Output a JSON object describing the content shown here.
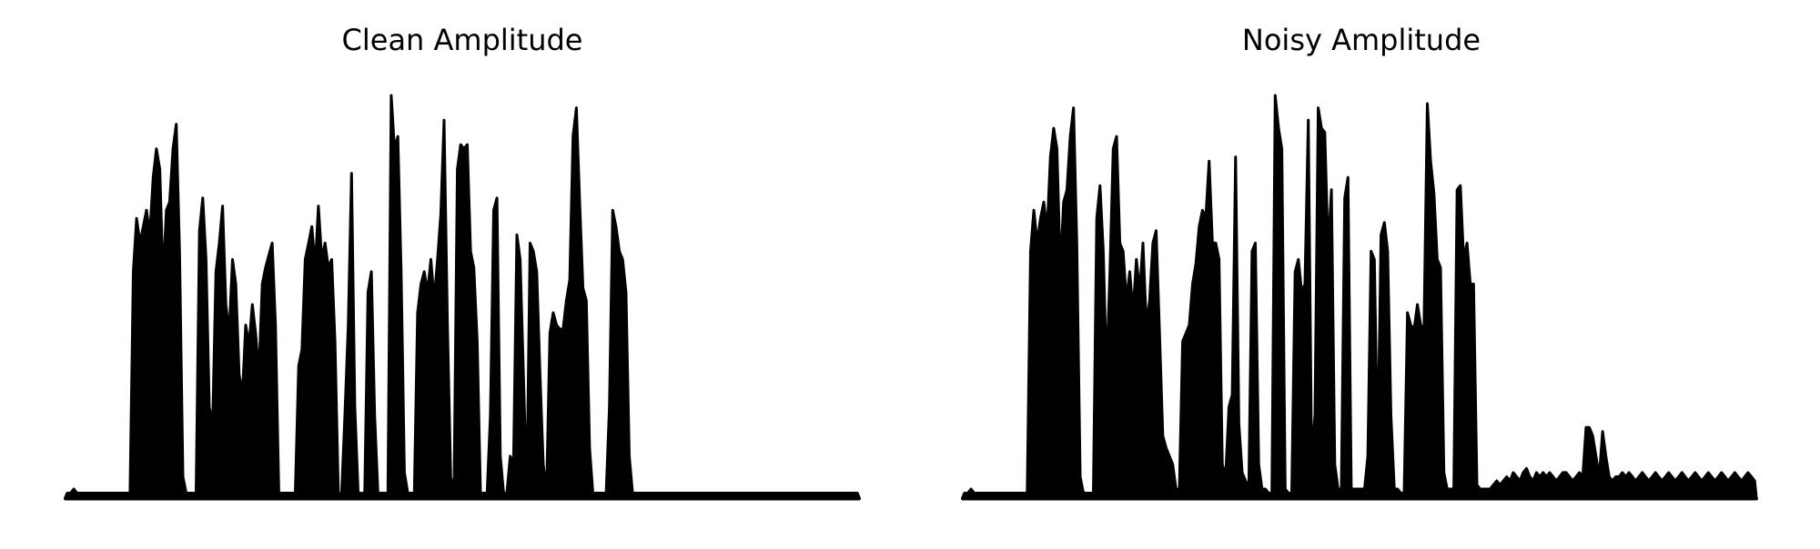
{
  "figure": {
    "ink_color": "#000000",
    "background_color": "#ffffff"
  },
  "chart_data": [
    {
      "type": "area",
      "title": "Clean Amplitude",
      "xlabel": "",
      "ylabel": "",
      "grid": false,
      "axes_visible": false,
      "legend": "none",
      "xlim": [
        0,
        240
      ],
      "ylim": [
        0,
        1
      ],
      "series": [
        {
          "values": [
            0.01,
            0.01,
            0.02,
            0.01,
            0.01,
            0.01,
            0.01,
            0.01,
            0.01,
            0.01,
            0.01,
            0.01,
            0.01,
            0.01,
            0.01,
            0.01,
            0.01,
            0.01,
            0.01,
            0.01,
            0.55,
            0.68,
            0.62,
            0.66,
            0.7,
            0.64,
            0.78,
            0.85,
            0.8,
            0.53,
            0.7,
            0.72,
            0.85,
            0.91,
            0.6,
            0.05,
            0.01,
            0.01,
            0.01,
            0.01,
            0.65,
            0.73,
            0.58,
            0.22,
            0.18,
            0.55,
            0.62,
            0.71,
            0.47,
            0.4,
            0.58,
            0.52,
            0.3,
            0.25,
            0.42,
            0.37,
            0.47,
            0.4,
            0.3,
            0.52,
            0.56,
            0.59,
            0.62,
            0.42,
            0.01,
            0.01,
            0.01,
            0.01,
            0.01,
            0.01,
            0.32,
            0.36,
            0.58,
            0.62,
            0.66,
            0.56,
            0.71,
            0.58,
            0.62,
            0.56,
            0.58,
            0.38,
            0.01,
            0.01,
            0.2,
            0.42,
            0.79,
            0.22,
            0.01,
            0.01,
            0.01,
            0.5,
            0.55,
            0.2,
            0.01,
            0.01,
            0.01,
            0.01,
            0.98,
            0.85,
            0.88,
            0.55,
            0.06,
            0.01,
            0.01,
            0.01,
            0.45,
            0.52,
            0.55,
            0.5,
            0.58,
            0.48,
            0.58,
            0.69,
            0.92,
            0.42,
            0.05,
            0.01,
            0.8,
            0.86,
            0.85,
            0.86,
            0.6,
            0.56,
            0.38,
            0.01,
            0.01,
            0.01,
            0.2,
            0.7,
            0.73,
            0.1,
            0.01,
            0.01,
            0.1,
            0.08,
            0.64,
            0.58,
            0.3,
            0.01,
            0.62,
            0.6,
            0.55,
            0.3,
            0.08,
            0.01,
            0.4,
            0.45,
            0.42,
            0.41,
            0.41,
            0.48,
            0.53,
            0.88,
            0.95,
            0.72,
            0.51,
            0.48,
            0.12,
            0.01,
            0.01,
            0.01,
            0.01,
            0.01,
            0.22,
            0.7,
            0.66,
            0.6,
            0.58,
            0.5,
            0.1,
            0.01,
            0.01,
            0.01,
            0.01,
            0.01,
            0.01,
            0.01,
            0.01,
            0.01,
            0.01,
            0.01,
            0.01,
            0.01,
            0.01,
            0.01,
            0.01,
            0.01,
            0.01,
            0.01,
            0.01,
            0.01,
            0.01,
            0.01,
            0.01,
            0.01,
            0.01,
            0.01,
            0.01,
            0.01,
            0.01,
            0.01,
            0.01,
            0.01,
            0.01,
            0.01,
            0.01,
            0.01,
            0.01,
            0.01,
            0.01,
            0.01,
            0.01,
            0.01,
            0.01,
            0.01,
            0.01,
            0.01,
            0.01,
            0.01,
            0.01,
            0.01,
            0.01,
            0.01,
            0.01,
            0.01,
            0.01,
            0.01,
            0.01,
            0.01,
            0.01,
            0.01,
            0.01,
            0.01,
            0.01,
            0.01,
            0.01,
            0.01,
            0.01,
            0.01
          ]
        }
      ]
    },
    {
      "type": "area",
      "title": "Noisy Amplitude",
      "xlabel": "",
      "ylabel": "",
      "grid": false,
      "axes_visible": false,
      "legend": "none",
      "xlim": [
        0,
        240
      ],
      "ylim": [
        0,
        1
      ],
      "series": [
        {
          "values": [
            0.01,
            0.01,
            0.02,
            0.01,
            0.01,
            0.01,
            0.01,
            0.01,
            0.01,
            0.01,
            0.01,
            0.01,
            0.01,
            0.01,
            0.01,
            0.01,
            0.01,
            0.01,
            0.01,
            0.01,
            0.6,
            0.7,
            0.62,
            0.68,
            0.72,
            0.65,
            0.83,
            0.9,
            0.85,
            0.55,
            0.72,
            0.75,
            0.88,
            0.95,
            0.62,
            0.05,
            0.01,
            0.01,
            0.01,
            0.01,
            0.68,
            0.76,
            0.6,
            0.3,
            0.55,
            0.85,
            0.88,
            0.62,
            0.6,
            0.48,
            0.55,
            0.45,
            0.58,
            0.5,
            0.62,
            0.42,
            0.48,
            0.62,
            0.65,
            0.4,
            0.15,
            0.12,
            0.1,
            0.08,
            0.02,
            0.02,
            0.38,
            0.4,
            0.42,
            0.52,
            0.57,
            0.66,
            0.7,
            0.68,
            0.82,
            0.62,
            0.62,
            0.58,
            0.08,
            0.05,
            0.22,
            0.25,
            0.83,
            0.18,
            0.06,
            0.04,
            0.02,
            0.6,
            0.62,
            0.08,
            0.02,
            0.02,
            0.01,
            0.01,
            0.98,
            0.9,
            0.85,
            0.02,
            0.01,
            0.01,
            0.55,
            0.58,
            0.5,
            0.52,
            0.92,
            0.1,
            0.2,
            0.95,
            0.9,
            0.89,
            0.6,
            0.75,
            0.08,
            0.02,
            0.02,
            0.73,
            0.78,
            0.02,
            0.02,
            0.02,
            0.02,
            0.02,
            0.1,
            0.6,
            0.58,
            0.1,
            0.64,
            0.67,
            0.6,
            0.2,
            0.02,
            0.02,
            0.01,
            0.01,
            0.45,
            0.42,
            0.41,
            0.47,
            0.42,
            0.41,
            0.96,
            0.82,
            0.74,
            0.58,
            0.56,
            0.06,
            0.02,
            0.02,
            0.02,
            0.75,
            0.76,
            0.58,
            0.62,
            0.52,
            0.52,
            0.03,
            0.02,
            0.02,
            0.02,
            0.02,
            0.03,
            0.04,
            0.03,
            0.04,
            0.05,
            0.04,
            0.06,
            0.05,
            0.04,
            0.06,
            0.07,
            0.05,
            0.04,
            0.06,
            0.05,
            0.06,
            0.05,
            0.06,
            0.05,
            0.04,
            0.05,
            0.06,
            0.06,
            0.05,
            0.04,
            0.05,
            0.06,
            0.05,
            0.17,
            0.17,
            0.15,
            0.1,
            0.05,
            0.16,
            0.1,
            0.05,
            0.04,
            0.05,
            0.05,
            0.06,
            0.05,
            0.06,
            0.05,
            0.04,
            0.05,
            0.06,
            0.05,
            0.04,
            0.05,
            0.06,
            0.05,
            0.04,
            0.05,
            0.06,
            0.05,
            0.04,
            0.05,
            0.06,
            0.05,
            0.04,
            0.05,
            0.06,
            0.05,
            0.04,
            0.05,
            0.06,
            0.05,
            0.04,
            0.05,
            0.06,
            0.05,
            0.04,
            0.05,
            0.06,
            0.05,
            0.04,
            0.05,
            0.06,
            0.05,
            0.04
          ]
        }
      ]
    }
  ]
}
